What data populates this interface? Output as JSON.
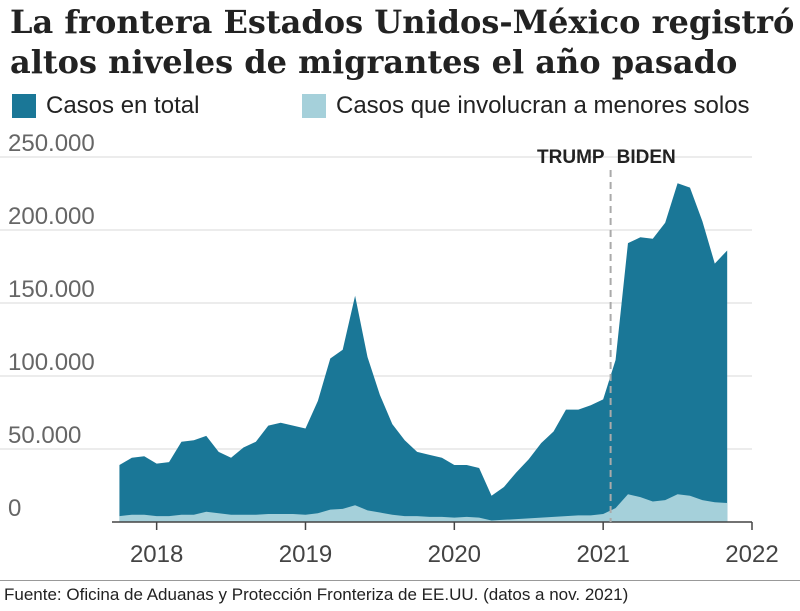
{
  "title_lines": [
    "La frontera Estados Unidos-México registró",
    "altos niveles de migrantes el año pasado"
  ],
  "legend": [
    {
      "label": "Casos en total",
      "color": "#1a7797"
    },
    {
      "label": "Casos que involucran a menores solos",
      "color": "#a5d0da"
    }
  ],
  "source": "Fuente: Oficina de Aduanas y Protección Fronteriza de EE.UU. (datos a nov. 2021)",
  "chart_data": {
    "type": "area",
    "title": "La frontera Estados Unidos-México registró altos niveles de migrantes el año pasado",
    "xlabel": "",
    "ylabel": "",
    "x_start": "2017-10",
    "x_end": "2021-11",
    "xlim": [
      2017.7,
      2022.0
    ],
    "ylim": [
      0,
      250000
    ],
    "y_ticks": [
      0,
      50000,
      100000,
      150000,
      200000,
      250000
    ],
    "y_tick_labels": [
      "0",
      "50.000",
      "100.000",
      "150.000",
      "200.000",
      "250.000"
    ],
    "x_ticks": [
      2018,
      2019,
      2020,
      2021,
      2022
    ],
    "x_tick_labels": [
      "2018",
      "2019",
      "2020",
      "2021",
      "2022"
    ],
    "grid": true,
    "series": [
      {
        "name": "Casos en total",
        "color": "#1a7797",
        "values": [
          39000,
          44000,
          45000,
          40000,
          41000,
          55000,
          56000,
          59000,
          48000,
          44000,
          51000,
          55000,
          66000,
          68000,
          66000,
          64000,
          83000,
          112000,
          118000,
          155000,
          113000,
          87000,
          67000,
          56000,
          48000,
          46000,
          44000,
          39000,
          39000,
          37000,
          18000,
          24000,
          34000,
          43000,
          54000,
          62000,
          77000,
          77000,
          80000,
          84000,
          111000,
          191000,
          195000,
          194000,
          205000,
          232000,
          229000,
          206000,
          177000,
          186000
        ]
      },
      {
        "name": "Casos que involucran a menores solos",
        "color": "#a5d0da",
        "values": [
          4000,
          5000,
          5000,
          4000,
          4000,
          5000,
          5000,
          7000,
          6000,
          5000,
          5000,
          5000,
          5500,
          5500,
          5500,
          5000,
          6000,
          8500,
          9000,
          11500,
          8000,
          6500,
          5000,
          4000,
          4000,
          3500,
          3500,
          3000,
          3500,
          3000,
          1000,
          1500,
          2000,
          2500,
          3000,
          3500,
          4000,
          4500,
          4500,
          5500,
          9500,
          19000,
          17000,
          14000,
          15000,
          19000,
          18000,
          15000,
          13500,
          13000
        ]
      }
    ],
    "annotations": [
      {
        "label": "TRUMP",
        "x": 2021.05
      },
      {
        "label": "BIDEN",
        "x": 2021.05
      }
    ]
  }
}
